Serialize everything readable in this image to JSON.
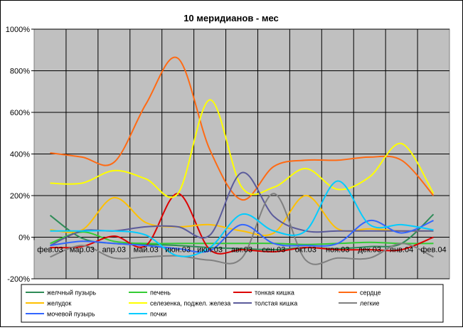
{
  "chart_data": {
    "type": "line",
    "title": "10 меридианов - мес",
    "xlabel": "",
    "ylabel": "",
    "ylim": [
      -200,
      1000
    ],
    "yticks": [
      -200,
      0,
      200,
      400,
      600,
      800,
      1000
    ],
    "ytick_labels": [
      "-200%",
      "0%",
      "200%",
      "400%",
      "600%",
      "800%",
      "1000%"
    ],
    "categories": [
      "фев.03",
      "мар.03",
      "апр.03",
      "май.03",
      "июн.03",
      "июл.03",
      "авг.03",
      "сен.03",
      "окт.03",
      "ноя.03",
      "дек.03",
      "янв.04",
      "фев.04"
    ],
    "grid": true,
    "legend_position": "bottom",
    "series": [
      {
        "name": "желчный пузырь",
        "color": "#2e8b57",
        "values": [
          105,
          -5,
          -30,
          -35,
          -40,
          -50,
          -55,
          -60,
          -50,
          -55,
          -45,
          -30,
          110
        ]
      },
      {
        "name": "печень",
        "color": "#33cc33",
        "values": [
          -30,
          25,
          -20,
          -30,
          -30,
          -30,
          -30,
          -30,
          -35,
          -30,
          -25,
          -30,
          -30
        ]
      },
      {
        "name": "тонкая кишка",
        "color": "#dd0000",
        "values": [
          -50,
          -45,
          5,
          -40,
          210,
          -60,
          -60,
          -70,
          -50,
          -60,
          -60,
          -60,
          0
        ]
      },
      {
        "name": "сердце",
        "color": "#ff6a13",
        "values": [
          405,
          385,
          360,
          640,
          860,
          420,
          180,
          340,
          370,
          370,
          385,
          370,
          200
        ]
      },
      {
        "name": "желудок",
        "color": "#ffc000",
        "values": [
          35,
          35,
          190,
          70,
          50,
          60,
          30,
          20,
          200,
          40,
          40,
          30,
          30
        ]
      },
      {
        "name": "селезенка, поджел. железа",
        "color": "#ffff00",
        "values": [
          260,
          260,
          320,
          280,
          210,
          660,
          240,
          240,
          330,
          230,
          290,
          450,
          210
        ]
      },
      {
        "name": "толстая кишка",
        "color": "#5b5b9b",
        "values": [
          -40,
          30,
          30,
          50,
          50,
          10,
          310,
          100,
          30,
          30,
          30,
          30,
          30
        ]
      },
      {
        "name": "легкие",
        "color": "#808080",
        "values": [
          -95,
          -40,
          -100,
          -95,
          -90,
          -110,
          -100,
          210,
          -110,
          -100,
          -100,
          -30,
          -95
        ]
      },
      {
        "name": "мочевой пузырь",
        "color": "#3366ff",
        "values": [
          -40,
          -20,
          -30,
          -40,
          -55,
          -65,
          60,
          -30,
          -40,
          -30,
          80,
          20,
          80
        ]
      },
      {
        "name": "почки",
        "color": "#00ccff",
        "values": [
          30,
          30,
          30,
          10,
          -90,
          -50,
          110,
          30,
          30,
          270,
          60,
          60,
          35
        ]
      }
    ]
  }
}
